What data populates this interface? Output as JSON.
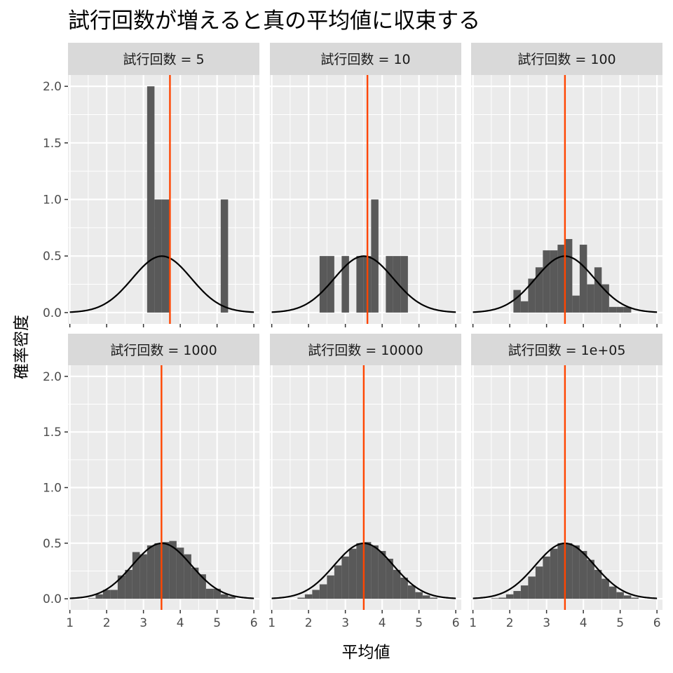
{
  "chart_data": {
    "type": "bar",
    "title": "試行回数が増えると真の平均値に収束する",
    "xlabel": "平均値",
    "ylabel": "確率密度",
    "xlim": [
      0.95,
      6.15
    ],
    "ylim": [
      -0.1,
      2.1
    ],
    "x_ticks": [
      1,
      2,
      3,
      4,
      5,
      6
    ],
    "y_ticks": [
      0.0,
      0.5,
      1.0,
      1.5,
      2.0
    ],
    "y_tick_labels": [
      "0.0",
      "0.5",
      "1.0",
      "1.5",
      "2.0"
    ],
    "grid": true,
    "colors": {
      "bar": "#595959",
      "mean_line": "#ff4500",
      "curve": "#000000",
      "panel_bg": "#ebebeb",
      "strip_bg": "#d9d9d9",
      "grid": "#ffffff"
    },
    "theoretical_curve": {
      "mean": 3.5,
      "sd": 0.8
    },
    "panels": [
      {
        "strip": "試行回数 = 5",
        "mean_line": 3.72,
        "bins": [
          {
            "x0": 3.1,
            "x1": 3.3,
            "y": 2.0
          },
          {
            "x0": 3.3,
            "x1": 3.5,
            "y": 1.0
          },
          {
            "x0": 3.5,
            "x1": 3.7,
            "y": 1.0
          },
          {
            "x0": 5.1,
            "x1": 5.3,
            "y": 1.0
          }
        ]
      },
      {
        "strip": "試行回数 = 10",
        "mean_line": 3.6,
        "bins": [
          {
            "x0": 2.3,
            "x1": 2.5,
            "y": 0.5
          },
          {
            "x0": 2.5,
            "x1": 2.7,
            "y": 0.5
          },
          {
            "x0": 2.9,
            "x1": 3.1,
            "y": 0.5
          },
          {
            "x0": 3.3,
            "x1": 3.5,
            "y": 0.5
          },
          {
            "x0": 3.5,
            "x1": 3.7,
            "y": 0.5
          },
          {
            "x0": 3.7,
            "x1": 3.9,
            "y": 1.0
          },
          {
            "x0": 4.1,
            "x1": 4.3,
            "y": 0.5
          },
          {
            "x0": 4.3,
            "x1": 4.5,
            "y": 0.5
          },
          {
            "x0": 4.5,
            "x1": 4.7,
            "y": 0.5
          }
        ]
      },
      {
        "strip": "試行回数 = 100",
        "mean_line": 3.5,
        "bins": [
          {
            "x0": 2.1,
            "x1": 2.3,
            "y": 0.2
          },
          {
            "x0": 2.3,
            "x1": 2.5,
            "y": 0.1
          },
          {
            "x0": 2.5,
            "x1": 2.7,
            "y": 0.3
          },
          {
            "x0": 2.7,
            "x1": 2.9,
            "y": 0.4
          },
          {
            "x0": 2.9,
            "x1": 3.1,
            "y": 0.55
          },
          {
            "x0": 3.1,
            "x1": 3.3,
            "y": 0.55
          },
          {
            "x0": 3.3,
            "x1": 3.5,
            "y": 0.6
          },
          {
            "x0": 3.5,
            "x1": 3.7,
            "y": 0.65
          },
          {
            "x0": 3.7,
            "x1": 3.9,
            "y": 0.15
          },
          {
            "x0": 3.9,
            "x1": 4.1,
            "y": 0.6
          },
          {
            "x0": 4.1,
            "x1": 4.3,
            "y": 0.25
          },
          {
            "x0": 4.3,
            "x1": 4.5,
            "y": 0.4
          },
          {
            "x0": 4.5,
            "x1": 4.7,
            "y": 0.25
          },
          {
            "x0": 4.7,
            "x1": 4.9,
            "y": 0.05
          },
          {
            "x0": 4.9,
            "x1": 5.1,
            "y": 0.05
          },
          {
            "x0": 5.1,
            "x1": 5.3,
            "y": 0.05
          }
        ]
      },
      {
        "strip": "試行回数 = 1000",
        "mean_line": 3.49,
        "bins": [
          {
            "x0": 1.5,
            "x1": 1.7,
            "y": 0.005
          },
          {
            "x0": 1.7,
            "x1": 1.9,
            "y": 0.04
          },
          {
            "x0": 1.9,
            "x1": 2.1,
            "y": 0.08
          },
          {
            "x0": 2.1,
            "x1": 2.3,
            "y": 0.08
          },
          {
            "x0": 2.3,
            "x1": 2.5,
            "y": 0.21
          },
          {
            "x0": 2.5,
            "x1": 2.7,
            "y": 0.26
          },
          {
            "x0": 2.7,
            "x1": 2.9,
            "y": 0.42
          },
          {
            "x0": 2.9,
            "x1": 3.1,
            "y": 0.4
          },
          {
            "x0": 3.1,
            "x1": 3.3,
            "y": 0.48
          },
          {
            "x0": 3.3,
            "x1": 3.5,
            "y": 0.5
          },
          {
            "x0": 3.5,
            "x1": 3.7,
            "y": 0.51
          },
          {
            "x0": 3.7,
            "x1": 3.9,
            "y": 0.52
          },
          {
            "x0": 3.9,
            "x1": 4.1,
            "y": 0.46
          },
          {
            "x0": 4.1,
            "x1": 4.3,
            "y": 0.4
          },
          {
            "x0": 4.3,
            "x1": 4.5,
            "y": 0.28
          },
          {
            "x0": 4.5,
            "x1": 4.7,
            "y": 0.22
          },
          {
            "x0": 4.7,
            "x1": 4.9,
            "y": 0.09
          },
          {
            "x0": 4.9,
            "x1": 5.1,
            "y": 0.09
          },
          {
            "x0": 5.1,
            "x1": 5.3,
            "y": 0.04
          },
          {
            "x0": 5.3,
            "x1": 5.5,
            "y": 0.02
          }
        ]
      },
      {
        "strip": "試行回数 = 10000",
        "mean_line": 3.5,
        "bins": [
          {
            "x0": 1.7,
            "x1": 1.9,
            "y": 0.01
          },
          {
            "x0": 1.9,
            "x1": 2.1,
            "y": 0.04
          },
          {
            "x0": 2.1,
            "x1": 2.3,
            "y": 0.08
          },
          {
            "x0": 2.3,
            "x1": 2.5,
            "y": 0.13
          },
          {
            "x0": 2.5,
            "x1": 2.7,
            "y": 0.21
          },
          {
            "x0": 2.7,
            "x1": 2.9,
            "y": 0.3
          },
          {
            "x0": 2.9,
            "x1": 3.1,
            "y": 0.38
          },
          {
            "x0": 3.1,
            "x1": 3.3,
            "y": 0.45
          },
          {
            "x0": 3.3,
            "x1": 3.5,
            "y": 0.5
          },
          {
            "x0": 3.5,
            "x1": 3.7,
            "y": 0.51
          },
          {
            "x0": 3.7,
            "x1": 3.9,
            "y": 0.48
          },
          {
            "x0": 3.9,
            "x1": 4.1,
            "y": 0.43
          },
          {
            "x0": 4.1,
            "x1": 4.3,
            "y": 0.36
          },
          {
            "x0": 4.3,
            "x1": 4.5,
            "y": 0.26
          },
          {
            "x0": 4.5,
            "x1": 4.7,
            "y": 0.19
          },
          {
            "x0": 4.7,
            "x1": 4.9,
            "y": 0.12
          },
          {
            "x0": 4.9,
            "x1": 5.1,
            "y": 0.06
          },
          {
            "x0": 5.1,
            "x1": 5.3,
            "y": 0.03
          },
          {
            "x0": 5.3,
            "x1": 5.5,
            "y": 0.01
          }
        ]
      },
      {
        "strip": "試行回数 = 1e+05",
        "mean_line": 3.5,
        "bins": [
          {
            "x0": 1.5,
            "x1": 1.7,
            "y": 0.005
          },
          {
            "x0": 1.7,
            "x1": 1.9,
            "y": 0.01
          },
          {
            "x0": 1.9,
            "x1": 2.1,
            "y": 0.04
          },
          {
            "x0": 2.1,
            "x1": 2.3,
            "y": 0.07
          },
          {
            "x0": 2.3,
            "x1": 2.5,
            "y": 0.12
          },
          {
            "x0": 2.5,
            "x1": 2.7,
            "y": 0.2
          },
          {
            "x0": 2.7,
            "x1": 2.9,
            "y": 0.29
          },
          {
            "x0": 2.9,
            "x1": 3.1,
            "y": 0.38
          },
          {
            "x0": 3.1,
            "x1": 3.3,
            "y": 0.45
          },
          {
            "x0": 3.3,
            "x1": 3.5,
            "y": 0.5
          },
          {
            "x0": 3.5,
            "x1": 3.7,
            "y": 0.5
          },
          {
            "x0": 3.7,
            "x1": 3.9,
            "y": 0.48
          },
          {
            "x0": 3.9,
            "x1": 4.1,
            "y": 0.43
          },
          {
            "x0": 4.1,
            "x1": 4.3,
            "y": 0.35
          },
          {
            "x0": 4.3,
            "x1": 4.5,
            "y": 0.26
          },
          {
            "x0": 4.5,
            "x1": 4.7,
            "y": 0.18
          },
          {
            "x0": 4.7,
            "x1": 4.9,
            "y": 0.11
          },
          {
            "x0": 4.9,
            "x1": 5.1,
            "y": 0.06
          },
          {
            "x0": 5.1,
            "x1": 5.3,
            "y": 0.03
          },
          {
            "x0": 5.3,
            "x1": 5.5,
            "y": 0.01
          }
        ]
      }
    ]
  }
}
